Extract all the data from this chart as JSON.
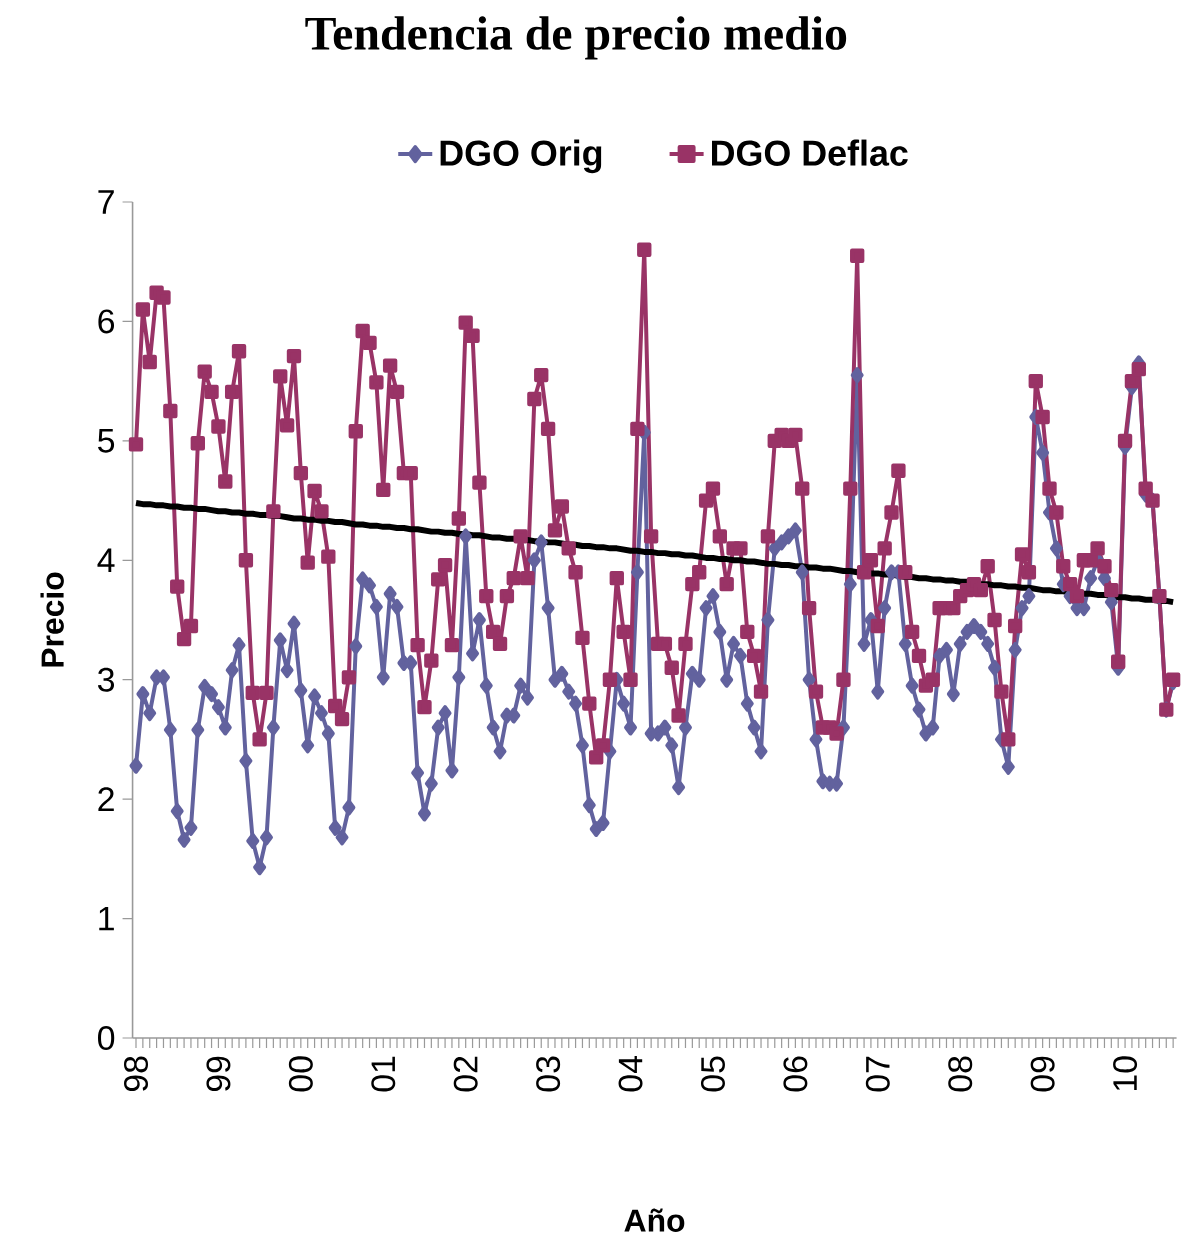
{
  "chart_data": {
    "type": "line",
    "title": "Tendencia de precio medio",
    "xlabel": "Año",
    "ylabel": "Precio",
    "categories": [
      "98",
      null,
      null,
      null,
      null,
      null,
      null,
      null,
      null,
      null,
      null,
      null,
      "99",
      null,
      null,
      null,
      null,
      null,
      null,
      null,
      null,
      null,
      null,
      null,
      "00",
      null,
      null,
      null,
      null,
      null,
      null,
      null,
      null,
      null,
      null,
      null,
      "01",
      null,
      null,
      null,
      null,
      null,
      null,
      null,
      null,
      null,
      null,
      null,
      "02",
      null,
      null,
      null,
      null,
      null,
      null,
      null,
      null,
      null,
      null,
      null,
      "03",
      null,
      null,
      null,
      null,
      null,
      null,
      null,
      null,
      null,
      null,
      null,
      "04",
      null,
      null,
      null,
      null,
      null,
      null,
      null,
      null,
      null,
      null,
      null,
      "05",
      null,
      null,
      null,
      null,
      null,
      null,
      null,
      null,
      null,
      null,
      null,
      "06",
      null,
      null,
      null,
      null,
      null,
      null,
      null,
      null,
      null,
      null,
      null,
      "07",
      null,
      null,
      null,
      null,
      null,
      null,
      null,
      null,
      null,
      null,
      null,
      "08",
      null,
      null,
      null,
      null,
      null,
      null,
      null,
      null,
      null,
      null,
      null,
      "09",
      null,
      null,
      null,
      null,
      null,
      null,
      null,
      null,
      null,
      null,
      null,
      "10",
      null,
      null,
      null,
      null,
      null,
      null,
      null
    ],
    "series": [
      {
        "name": "DGO Orig",
        "color": "#62629e",
        "marker": "diamond",
        "values": [
          2.28,
          2.88,
          2.72,
          3.02,
          3.02,
          2.58,
          1.9,
          1.66,
          1.76,
          2.58,
          2.94,
          2.88,
          2.77,
          2.6,
          3.08,
          3.29,
          2.32,
          1.65,
          1.43,
          1.68,
          2.6,
          3.33,
          3.08,
          3.47,
          2.91,
          2.45,
          2.86,
          2.72,
          2.55,
          1.76,
          1.68,
          1.93,
          3.28,
          3.84,
          3.79,
          3.61,
          3.02,
          3.72,
          3.61,
          3.14,
          3.14,
          2.22,
          1.88,
          2.13,
          2.6,
          2.72,
          2.24,
          3.02,
          4.2,
          3.22,
          3.5,
          2.95,
          2.6,
          2.4,
          2.7,
          2.7,
          2.95,
          2.85,
          4.0,
          4.15,
          3.6,
          3.0,
          3.05,
          2.9,
          2.8,
          2.45,
          1.95,
          1.75,
          1.8,
          2.4,
          3.0,
          2.8,
          2.6,
          3.9,
          5.07,
          2.55,
          2.55,
          2.6,
          2.45,
          2.1,
          2.6,
          3.05,
          3.0,
          3.6,
          3.7,
          3.4,
          3.0,
          3.3,
          3.2,
          2.8,
          2.6,
          2.4,
          3.5,
          4.1,
          4.15,
          4.2,
          4.25,
          3.9,
          3.0,
          2.5,
          2.15,
          2.13,
          2.13,
          2.6,
          3.8,
          5.55,
          3.3,
          3.5,
          2.9,
          3.6,
          3.9,
          3.9,
          3.3,
          2.95,
          2.75,
          2.55,
          2.6,
          3.2,
          3.25,
          2.88,
          3.3,
          3.4,
          3.45,
          3.4,
          3.3,
          3.1,
          2.5,
          2.27,
          3.25,
          3.6,
          3.7,
          5.2,
          4.9,
          4.4,
          4.1,
          3.8,
          3.7,
          3.6,
          3.6,
          3.85,
          4.0,
          3.85,
          3.65,
          3.1,
          4.95,
          5.45,
          5.65,
          4.55,
          4.5,
          3.7,
          2.75,
          2.98
        ]
      },
      {
        "name": "DGO Deflac",
        "color": "#993366",
        "marker": "square",
        "values": [
          4.97,
          6.1,
          5.66,
          6.24,
          6.2,
          5.25,
          3.78,
          3.34,
          3.45,
          4.98,
          5.58,
          5.41,
          5.12,
          4.66,
          5.41,
          5.75,
          4.0,
          2.89,
          2.5,
          2.89,
          4.41,
          5.54,
          5.13,
          5.71,
          4.73,
          3.98,
          4.58,
          4.41,
          4.03,
          2.78,
          2.67,
          3.02,
          5.08,
          5.92,
          5.82,
          5.49,
          4.59,
          5.63,
          5.41,
          4.73,
          4.73,
          3.29,
          2.77,
          3.16,
          3.84,
          3.96,
          3.29,
          4.35,
          5.99,
          5.88,
          4.65,
          3.7,
          3.4,
          3.3,
          3.7,
          3.85,
          4.2,
          3.85,
          5.35,
          5.55,
          5.1,
          4.25,
          4.45,
          4.1,
          3.9,
          3.35,
          2.8,
          2.35,
          2.45,
          3.0,
          3.85,
          3.4,
          3.0,
          5.1,
          6.6,
          4.2,
          3.3,
          3.3,
          3.1,
          2.7,
          3.3,
          3.8,
          3.9,
          4.5,
          4.6,
          4.2,
          3.8,
          4.1,
          4.1,
          3.4,
          3.2,
          2.9,
          4.2,
          5.0,
          5.05,
          5.0,
          5.05,
          4.6,
          3.6,
          2.9,
          2.6,
          2.6,
          2.55,
          3.0,
          4.6,
          6.55,
          3.9,
          4.0,
          3.45,
          4.1,
          4.4,
          4.75,
          3.9,
          3.4,
          3.2,
          2.95,
          3.0,
          3.6,
          3.6,
          3.6,
          3.7,
          3.75,
          3.8,
          3.75,
          3.95,
          3.5,
          2.9,
          2.5,
          3.45,
          4.05,
          3.9,
          5.5,
          5.2,
          4.6,
          4.4,
          3.95,
          3.8,
          3.7,
          4.0,
          4.0,
          4.1,
          3.95,
          3.75,
          3.15,
          5.0,
          5.5,
          5.6,
          4.6,
          4.5,
          3.7,
          2.75,
          3.0
        ]
      },
      {
        "type": "line",
        "color": "#000000",
        "marker": "none",
        "values": [
          4.48,
          4.47,
          4.47,
          4.46,
          4.46,
          4.45,
          4.45,
          4.44,
          4.44,
          4.43,
          4.43,
          4.42,
          4.41,
          4.41,
          4.4,
          4.4,
          4.39,
          4.39,
          4.38,
          4.38,
          4.37,
          4.37,
          4.36,
          4.35,
          4.35,
          4.34,
          4.34,
          4.33,
          4.33,
          4.32,
          4.32,
          4.31,
          4.3,
          4.3,
          4.29,
          4.29,
          4.28,
          4.28,
          4.27,
          4.27,
          4.26,
          4.26,
          4.25,
          4.24,
          4.24,
          4.23,
          4.23,
          4.22,
          4.22,
          4.21,
          4.21,
          4.2,
          4.19,
          4.19,
          4.18,
          4.18,
          4.17,
          4.17,
          4.16,
          4.16,
          4.15,
          4.15,
          4.14,
          4.13,
          4.13,
          4.12,
          4.12,
          4.11,
          4.11,
          4.1,
          4.1,
          4.09,
          4.08,
          4.08,
          4.07,
          4.07,
          4.06,
          4.06,
          4.05,
          4.05,
          4.04,
          4.04,
          4.03,
          4.02,
          4.02,
          4.01,
          4.01,
          4.0,
          4.0,
          3.99,
          3.99,
          3.98,
          3.97,
          3.97,
          3.96,
          3.96,
          3.95,
          3.95,
          3.94,
          3.94,
          3.93,
          3.93,
          3.92,
          3.91,
          3.91,
          3.9,
          3.9,
          3.89,
          3.89,
          3.88,
          3.88,
          3.87,
          3.86,
          3.86,
          3.85,
          3.85,
          3.84,
          3.84,
          3.83,
          3.83,
          3.82,
          3.82,
          3.81,
          3.8,
          3.8,
          3.79,
          3.79,
          3.78,
          3.78,
          3.77,
          3.77,
          3.76,
          3.75,
          3.75,
          3.74,
          3.74,
          3.73,
          3.73,
          3.72,
          3.72,
          3.71,
          3.71,
          3.7,
          3.69,
          3.69,
          3.68,
          3.68,
          3.67,
          3.67,
          3.66,
          3.66,
          3.65
        ]
      }
    ],
    "ylim": [
      0,
      7
    ],
    "yticks": [
      0,
      1,
      2,
      3,
      4,
      5,
      6,
      7
    ],
    "grid": false,
    "legend": "top",
    "line_style": "solid"
  }
}
